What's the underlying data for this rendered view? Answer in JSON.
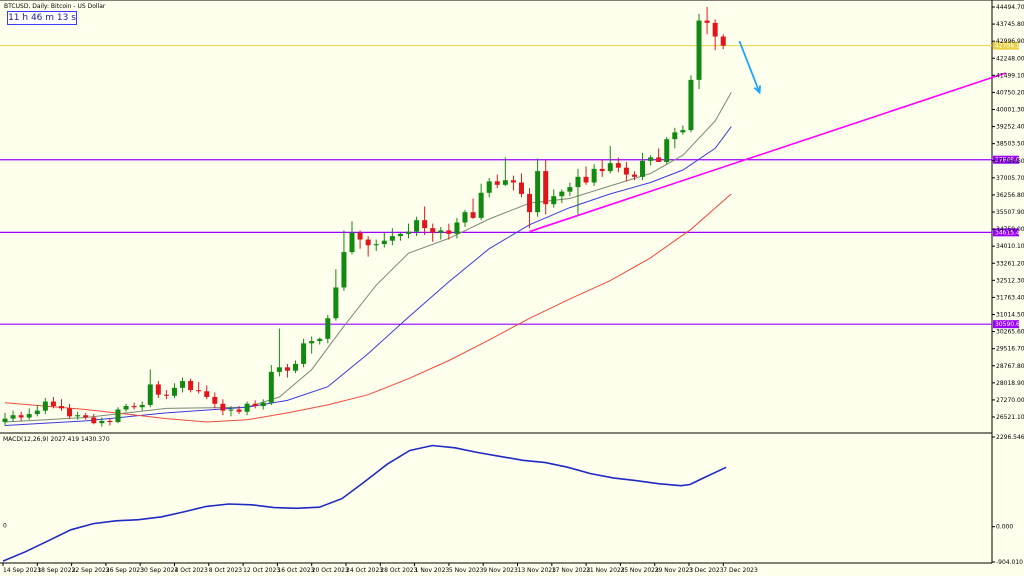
{
  "chart_title": "BTCUSD, Daily: Bitcoin - US Dollar",
  "timer": "11 h 46 m 13 s",
  "macd_label": "MACD(12,26,9) 2027.419 1430.370",
  "colors": {
    "background": "#ffffee",
    "bull": "#128a12",
    "bear": "#e0161c",
    "resistance": "#9a00ff",
    "trendline": "#ff00ff",
    "arrow": "#1ea2ff",
    "ma_short": "#7a8a78",
    "ma_mid": "#3a3ae0",
    "ma_long": "#f04a3a",
    "macd": "#1e2ac0",
    "bid_line": "#e8d040"
  },
  "chart_data": {
    "type": "candlestick",
    "title": "BTCUSD, Daily: Bitcoin - US Dollar",
    "price_axis": {
      "ticks": [
        "44494.70",
        "43745.80",
        "42996.90",
        "42248.00",
        "41499.10",
        "40750.20",
        "40001.30",
        "39252.40",
        "38503.50",
        "37754.60",
        "37005.70",
        "36256.80",
        "35507.90",
        "34759.00",
        "34010.10",
        "33261.20",
        "32512.30",
        "31763.40",
        "31014.50",
        "30265.60",
        "29516.70",
        "28767.80",
        "28018.90",
        "27270.00",
        "26521.10"
      ],
      "ylim": [
        26100,
        44800
      ]
    },
    "levels": [
      {
        "price": 42800,
        "label": "42798.10"
      },
      {
        "price": 37800,
        "label": "37849.00"
      },
      {
        "price": 34615,
        "label": "34615.40"
      },
      {
        "price": 30590,
        "label": "30590.60"
      }
    ],
    "x_ticks": [
      "14 Sep 2023",
      "18 Sep 2023",
      "22 Sep 2023",
      "26 Sep 2023",
      "30 Sep 2023",
      "4 Oct 2023",
      "8 Oct 2023",
      "12 Oct 2023",
      "16 Oct 2023",
      "20 Oct 2023",
      "24 Oct 2023",
      "28 Oct 2023",
      "1 Nov 2023",
      "5 Nov 2023",
      "9 Nov 2023",
      "13 Nov 2023",
      "17 Nov 2023",
      "21 Nov 2023",
      "25 Nov 2023",
      "29 Nov 2023",
      "3 Dec 2023",
      "7 Dec 2023"
    ],
    "candles": [
      {
        "o": 26300,
        "h": 26700,
        "l": 26150,
        "c": 26450
      },
      {
        "o": 26450,
        "h": 26800,
        "l": 26300,
        "c": 26600
      },
      {
        "o": 26600,
        "h": 26750,
        "l": 26350,
        "c": 26500
      },
      {
        "o": 26500,
        "h": 26900,
        "l": 26400,
        "c": 26650
      },
      {
        "o": 26650,
        "h": 27050,
        "l": 26550,
        "c": 26800
      },
      {
        "o": 26800,
        "h": 27350,
        "l": 26650,
        "c": 27200
      },
      {
        "o": 27200,
        "h": 27400,
        "l": 26900,
        "c": 27000
      },
      {
        "o": 27000,
        "h": 27300,
        "l": 26800,
        "c": 26900
      },
      {
        "o": 26900,
        "h": 27100,
        "l": 26450,
        "c": 26550
      },
      {
        "o": 26550,
        "h": 26750,
        "l": 26400,
        "c": 26600
      },
      {
        "o": 26600,
        "h": 26700,
        "l": 26400,
        "c": 26500
      },
      {
        "o": 26500,
        "h": 26650,
        "l": 26200,
        "c": 26250
      },
      {
        "o": 26250,
        "h": 26500,
        "l": 26100,
        "c": 26350
      },
      {
        "o": 26350,
        "h": 26450,
        "l": 26150,
        "c": 26300
      },
      {
        "o": 26300,
        "h": 26950,
        "l": 26250,
        "c": 26850
      },
      {
        "o": 26850,
        "h": 27100,
        "l": 26750,
        "c": 27000
      },
      {
        "o": 27000,
        "h": 27150,
        "l": 26850,
        "c": 26950
      },
      {
        "o": 26950,
        "h": 27200,
        "l": 26800,
        "c": 27050
      },
      {
        "o": 27050,
        "h": 28600,
        "l": 26950,
        "c": 27950
      },
      {
        "o": 27950,
        "h": 28100,
        "l": 27350,
        "c": 27500
      },
      {
        "o": 27500,
        "h": 27700,
        "l": 27300,
        "c": 27450
      },
      {
        "o": 27450,
        "h": 28000,
        "l": 27350,
        "c": 27800
      },
      {
        "o": 27800,
        "h": 28250,
        "l": 27600,
        "c": 28100
      },
      {
        "o": 28100,
        "h": 28200,
        "l": 27600,
        "c": 27700
      },
      {
        "o": 27700,
        "h": 28050,
        "l": 27550,
        "c": 27650
      },
      {
        "o": 27650,
        "h": 27900,
        "l": 27300,
        "c": 27400
      },
      {
        "o": 27400,
        "h": 27600,
        "l": 26900,
        "c": 27100
      },
      {
        "o": 27100,
        "h": 27300,
        "l": 26600,
        "c": 26800
      },
      {
        "o": 26800,
        "h": 27000,
        "l": 26550,
        "c": 26850
      },
      {
        "o": 26850,
        "h": 27000,
        "l": 26650,
        "c": 26750
      },
      {
        "o": 26750,
        "h": 27200,
        "l": 26600,
        "c": 27100
      },
      {
        "o": 27100,
        "h": 27250,
        "l": 26900,
        "c": 27000
      },
      {
        "o": 27000,
        "h": 27300,
        "l": 26850,
        "c": 27150
      },
      {
        "o": 27150,
        "h": 28800,
        "l": 27050,
        "c": 28500
      },
      {
        "o": 28500,
        "h": 30400,
        "l": 28300,
        "c": 28700
      },
      {
        "o": 28700,
        "h": 28850,
        "l": 28250,
        "c": 28550
      },
      {
        "o": 28550,
        "h": 29000,
        "l": 28450,
        "c": 28850
      },
      {
        "o": 28850,
        "h": 29950,
        "l": 28700,
        "c": 29750
      },
      {
        "o": 29750,
        "h": 30050,
        "l": 29300,
        "c": 29850
      },
      {
        "o": 29850,
        "h": 30000,
        "l": 29700,
        "c": 29950
      },
      {
        "o": 29950,
        "h": 31000,
        "l": 29750,
        "c": 30850
      },
      {
        "o": 30850,
        "h": 33000,
        "l": 30750,
        "c": 32200
      },
      {
        "o": 32200,
        "h": 34700,
        "l": 32050,
        "c": 33750
      },
      {
        "o": 33750,
        "h": 35100,
        "l": 33650,
        "c": 34600
      },
      {
        "o": 34600,
        "h": 34700,
        "l": 33900,
        "c": 34300
      },
      {
        "o": 34300,
        "h": 34450,
        "l": 33550,
        "c": 34050
      },
      {
        "o": 34050,
        "h": 34300,
        "l": 33800,
        "c": 34100
      },
      {
        "o": 34100,
        "h": 34600,
        "l": 33950,
        "c": 34250
      },
      {
        "o": 34250,
        "h": 34800,
        "l": 34050,
        "c": 34450
      },
      {
        "o": 34450,
        "h": 34600,
        "l": 34250,
        "c": 34550
      },
      {
        "o": 34550,
        "h": 35000,
        "l": 34350,
        "c": 34650
      },
      {
        "o": 34650,
        "h": 35300,
        "l": 34450,
        "c": 35150
      },
      {
        "o": 35150,
        "h": 35750,
        "l": 34500,
        "c": 34800
      },
      {
        "o": 34800,
        "h": 35000,
        "l": 34200,
        "c": 34600
      },
      {
        "o": 34600,
        "h": 34850,
        "l": 34300,
        "c": 34700
      },
      {
        "o": 34700,
        "h": 35000,
        "l": 34300,
        "c": 34550
      },
      {
        "o": 34550,
        "h": 35250,
        "l": 34350,
        "c": 35050
      },
      {
        "o": 35050,
        "h": 35600,
        "l": 34850,
        "c": 35500
      },
      {
        "o": 35500,
        "h": 36100,
        "l": 35200,
        "c": 35250
      },
      {
        "o": 35250,
        "h": 36750,
        "l": 35150,
        "c": 36350
      },
      {
        "o": 36350,
        "h": 37000,
        "l": 36150,
        "c": 36850
      },
      {
        "o": 36850,
        "h": 37150,
        "l": 36550,
        "c": 36700
      },
      {
        "o": 36700,
        "h": 37900,
        "l": 36650,
        "c": 36900
      },
      {
        "o": 36900,
        "h": 37100,
        "l": 36450,
        "c": 36800
      },
      {
        "o": 36800,
        "h": 37200,
        "l": 36150,
        "c": 36300
      },
      {
        "o": 36300,
        "h": 36550,
        "l": 34800,
        "c": 35500
      },
      {
        "o": 35500,
        "h": 37850,
        "l": 35300,
        "c": 37300
      },
      {
        "o": 37300,
        "h": 37800,
        "l": 35400,
        "c": 35850
      },
      {
        "o": 35850,
        "h": 36500,
        "l": 35700,
        "c": 36200
      },
      {
        "o": 36200,
        "h": 36500,
        "l": 35900,
        "c": 36400
      },
      {
        "o": 36400,
        "h": 36800,
        "l": 36200,
        "c": 36600
      },
      {
        "o": 36600,
        "h": 37400,
        "l": 35400,
        "c": 37050
      },
      {
        "o": 37050,
        "h": 37500,
        "l": 36700,
        "c": 36800
      },
      {
        "o": 36800,
        "h": 37600,
        "l": 36650,
        "c": 37400
      },
      {
        "o": 37400,
        "h": 37800,
        "l": 37050,
        "c": 37300
      },
      {
        "o": 37300,
        "h": 38400,
        "l": 37200,
        "c": 37650
      },
      {
        "o": 37650,
        "h": 37900,
        "l": 37250,
        "c": 37450
      },
      {
        "o": 37450,
        "h": 37700,
        "l": 36850,
        "c": 37150
      },
      {
        "o": 37150,
        "h": 37300,
        "l": 36900,
        "c": 37050
      },
      {
        "o": 37050,
        "h": 38100,
        "l": 36900,
        "c": 37750
      },
      {
        "o": 37750,
        "h": 38000,
        "l": 37550,
        "c": 37900
      },
      {
        "o": 37900,
        "h": 38300,
        "l": 37700,
        "c": 37700
      },
      {
        "o": 37700,
        "h": 38800,
        "l": 37600,
        "c": 38700
      },
      {
        "o": 38700,
        "h": 39200,
        "l": 38300,
        "c": 39000
      },
      {
        "o": 39000,
        "h": 39300,
        "l": 38900,
        "c": 39100
      },
      {
        "o": 39100,
        "h": 41500,
        "l": 39000,
        "c": 41300
      },
      {
        "o": 41300,
        "h": 44200,
        "l": 40900,
        "c": 43900
      },
      {
        "o": 43900,
        "h": 44500,
        "l": 43300,
        "c": 43800
      },
      {
        "o": 43800,
        "h": 43950,
        "l": 42600,
        "c": 43200
      },
      {
        "o": 43200,
        "h": 43300,
        "l": 42650,
        "c": 42800
      }
    ],
    "overlays": [
      {
        "name": "ma_short",
        "points": [
          [
            0,
            26300
          ],
          [
            10,
            26500
          ],
          [
            20,
            26900
          ],
          [
            30,
            26950
          ],
          [
            34,
            27400
          ],
          [
            38,
            28600
          ],
          [
            42,
            30500
          ],
          [
            46,
            32300
          ],
          [
            50,
            33700
          ],
          [
            55,
            34350
          ],
          [
            60,
            35200
          ],
          [
            65,
            35900
          ],
          [
            70,
            36100
          ],
          [
            75,
            36650
          ],
          [
            80,
            37200
          ],
          [
            84,
            38000
          ],
          [
            88,
            39500
          ],
          [
            90,
            40750
          ]
        ]
      },
      {
        "name": "ma_mid",
        "points": [
          [
            0,
            26150
          ],
          [
            10,
            26350
          ],
          [
            20,
            26700
          ],
          [
            30,
            26950
          ],
          [
            35,
            27250
          ],
          [
            40,
            27850
          ],
          [
            45,
            29300
          ],
          [
            50,
            30900
          ],
          [
            55,
            32450
          ],
          [
            60,
            33900
          ],
          [
            65,
            34950
          ],
          [
            70,
            35700
          ],
          [
            75,
            36300
          ],
          [
            80,
            36800
          ],
          [
            84,
            37350
          ],
          [
            88,
            38300
          ],
          [
            90,
            39250
          ]
        ]
      },
      {
        "name": "ma_long",
        "points": [
          [
            0,
            27150
          ],
          [
            10,
            26850
          ],
          [
            20,
            26450
          ],
          [
            25,
            26300
          ],
          [
            30,
            26400
          ],
          [
            35,
            26700
          ],
          [
            40,
            27050
          ],
          [
            45,
            27500
          ],
          [
            50,
            28200
          ],
          [
            55,
            29000
          ],
          [
            60,
            29900
          ],
          [
            65,
            30850
          ],
          [
            70,
            31700
          ],
          [
            75,
            32500
          ],
          [
            80,
            33500
          ],
          [
            85,
            34750
          ],
          [
            90,
            36300
          ]
        ]
      }
    ],
    "trendline": {
      "from": [
        65,
        34650
      ],
      "to": [
        124,
        41600
      ]
    },
    "arrow": {
      "from": [
        91,
        43000
      ],
      "to": [
        93.5,
        40750
      ]
    },
    "macd": {
      "axis_ticks": [
        "2296.546",
        "0",
        "0.000",
        "-904.010"
      ],
      "ylim": [
        -904.01,
        2296.546
      ],
      "points": [
        [
          0,
          -880
        ],
        [
          5,
          -640
        ],
        [
          10,
          -360
        ],
        [
          15,
          -80
        ],
        [
          20,
          80
        ],
        [
          25,
          150
        ],
        [
          30,
          180
        ],
        [
          35,
          250
        ],
        [
          40,
          380
        ],
        [
          45,
          520
        ],
        [
          50,
          580
        ],
        [
          55,
          560
        ],
        [
          60,
          490
        ],
        [
          65,
          470
        ],
        [
          70,
          500
        ],
        [
          75,
          720
        ],
        [
          80,
          1150
        ],
        [
          85,
          1600
        ],
        [
          90,
          1950
        ],
        [
          95,
          2080
        ],
        [
          100,
          2020
        ],
        [
          105,
          1900
        ],
        [
          110,
          1800
        ],
        [
          115,
          1700
        ],
        [
          120,
          1640
        ],
        [
          125,
          1520
        ],
        [
          130,
          1360
        ],
        [
          135,
          1250
        ],
        [
          140,
          1180
        ],
        [
          145,
          1100
        ],
        [
          150,
          1050
        ],
        [
          152,
          1080
        ],
        [
          155,
          1250
        ],
        [
          160,
          1520
        ]
      ]
    }
  }
}
